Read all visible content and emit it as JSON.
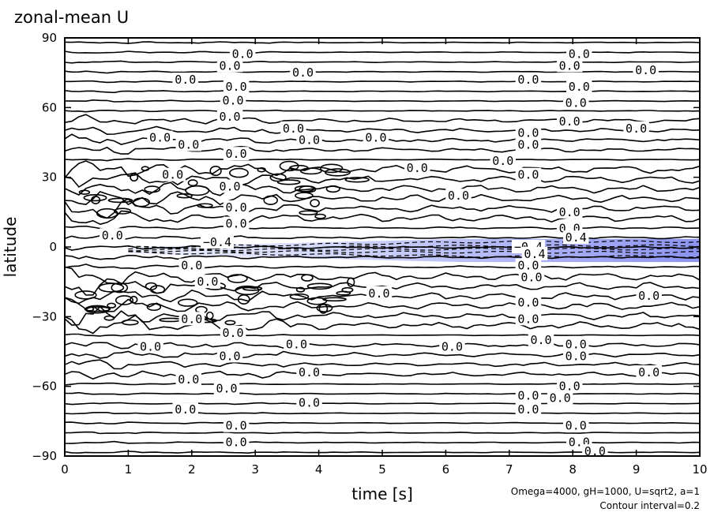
{
  "chart_data": {
    "type": "contour",
    "title": "zonal-mean U",
    "xlabel": "time [s]",
    "ylabel": "latitude",
    "xlim": [
      0,
      10
    ],
    "ylim": [
      -90,
      90
    ],
    "x_ticks": [
      "0",
      "1",
      "2",
      "3",
      "4",
      "5",
      "6",
      "7",
      "8",
      "9",
      "10"
    ],
    "y_ticks": [
      "90",
      "60",
      "30",
      "0",
      "−30",
      "−60",
      "−90"
    ],
    "y_tick_values": [
      90,
      60,
      30,
      0,
      -30,
      -60,
      -90
    ],
    "contour_interval": 0.2,
    "grid": false,
    "negative_fill_color": "#9999f0",
    "negative_region": {
      "latitude_center": -1.5,
      "max_halfwidth_deg": 5,
      "onset_time": 1.0,
      "min_value": -0.4
    },
    "contour_labels": [
      {
        "text": "0.0",
        "x": 2.8,
        "y": 83
      },
      {
        "text": "0.0",
        "x": 2.6,
        "y": 78
      },
      {
        "text": "0.0",
        "x": 8.1,
        "y": 83
      },
      {
        "text": "0.0",
        "x": 7.95,
        "y": 78
      },
      {
        "text": "0.0",
        "x": 1.9,
        "y": 72
      },
      {
        "text": "0.0",
        "x": 3.75,
        "y": 75
      },
      {
        "text": "0.0",
        "x": 7.3,
        "y": 72
      },
      {
        "text": "0.0",
        "x": 9.15,
        "y": 76
      },
      {
        "text": "0.0",
        "x": 2.7,
        "y": 69
      },
      {
        "text": "0.0",
        "x": 2.65,
        "y": 63
      },
      {
        "text": "0.0",
        "x": 2.6,
        "y": 56
      },
      {
        "text": "0.0",
        "x": 8.1,
        "y": 69
      },
      {
        "text": "0.0",
        "x": 8.05,
        "y": 62
      },
      {
        "text": "0.0",
        "x": 7.95,
        "y": 54
      },
      {
        "text": "0.0",
        "x": 3.6,
        "y": 51
      },
      {
        "text": "0.0",
        "x": 1.5,
        "y": 47
      },
      {
        "text": "0.0",
        "x": 1.95,
        "y": 44
      },
      {
        "text": "0.0",
        "x": 3.85,
        "y": 46
      },
      {
        "text": "0.0",
        "x": 4.9,
        "y": 47
      },
      {
        "text": "0.0",
        "x": 7.3,
        "y": 49
      },
      {
        "text": "0.0",
        "x": 7.3,
        "y": 44
      },
      {
        "text": "0.0",
        "x": 9.0,
        "y": 51
      },
      {
        "text": "0.0",
        "x": 1.7,
        "y": 31
      },
      {
        "text": "0.0",
        "x": 2.7,
        "y": 40
      },
      {
        "text": "0.0",
        "x": 5.55,
        "y": 34
      },
      {
        "text": "0.0",
        "x": 6.9,
        "y": 37
      },
      {
        "text": "0.0",
        "x": 7.3,
        "y": 31
      },
      {
        "text": "0.0",
        "x": 2.6,
        "y": 26
      },
      {
        "text": "0.0",
        "x": 6.2,
        "y": 22
      },
      {
        "text": "0.0",
        "x": 2.7,
        "y": 17
      },
      {
        "text": "0.0",
        "x": 2.7,
        "y": 10
      },
      {
        "text": "0.0",
        "x": 7.95,
        "y": 15
      },
      {
        "text": "0.0",
        "x": 7.95,
        "y": 8
      },
      {
        "text": "0.0",
        "x": 0.75,
        "y": 5
      },
      {
        "text": "−0.4",
        "x": 2.4,
        "y": 2
      },
      {
        "text": "−0.4",
        "x": 7.3,
        "y": 0
      },
      {
        "text": "0.4",
        "x": 8.05,
        "y": 4
      },
      {
        "text": "0.4",
        "x": 7.4,
        "y": -3
      },
      {
        "text": "0.0",
        "x": 2.0,
        "y": -8
      },
      {
        "text": "0.0",
        "x": 2.25,
        "y": -15
      },
      {
        "text": "0.0",
        "x": 7.3,
        "y": -8
      },
      {
        "text": "0.0",
        "x": 7.35,
        "y": -13
      },
      {
        "text": "0.0",
        "x": 4.95,
        "y": -20
      },
      {
        "text": "0.0",
        "x": 9.2,
        "y": -21
      },
      {
        "text": "0.0",
        "x": 2.0,
        "y": -31
      },
      {
        "text": "0.0",
        "x": 7.3,
        "y": -24
      },
      {
        "text": "0.0",
        "x": 7.3,
        "y": -31
      },
      {
        "text": "0.0",
        "x": 2.65,
        "y": -37
      },
      {
        "text": "0.0",
        "x": 1.35,
        "y": -43
      },
      {
        "text": "0.0",
        "x": 3.65,
        "y": -42
      },
      {
        "text": "0.0",
        "x": 6.1,
        "y": -43
      },
      {
        "text": "0.0",
        "x": 7.5,
        "y": -40
      },
      {
        "text": "0.0",
        "x": 8.05,
        "y": -42
      },
      {
        "text": "0.0",
        "x": 2.6,
        "y": -47
      },
      {
        "text": "0.0",
        "x": 8.05,
        "y": -47
      },
      {
        "text": "0.0",
        "x": 1.95,
        "y": -57
      },
      {
        "text": "0.0",
        "x": 3.85,
        "y": -54
      },
      {
        "text": "0.0",
        "x": 2.55,
        "y": -61
      },
      {
        "text": "0.0",
        "x": 7.95,
        "y": -60
      },
      {
        "text": "0.0",
        "x": 9.2,
        "y": -54
      },
      {
        "text": "0.0",
        "x": 3.85,
        "y": -67
      },
      {
        "text": "0.0",
        "x": 7.3,
        "y": -64
      },
      {
        "text": "0.0",
        "x": 7.8,
        "y": -65
      },
      {
        "text": "0.0",
        "x": 1.9,
        "y": -70
      },
      {
        "text": "0.0",
        "x": 7.3,
        "y": -70
      },
      {
        "text": "0.0",
        "x": 2.7,
        "y": -77
      },
      {
        "text": "0.0",
        "x": 2.7,
        "y": -84
      },
      {
        "text": "0.0",
        "x": 8.05,
        "y": -77
      },
      {
        "text": "0.0",
        "x": 8.1,
        "y": -84
      },
      {
        "text": "0.0",
        "x": 8.35,
        "y": -88
      }
    ]
  },
  "footnotes": {
    "parameters": "Omega=4000, gH=1000, U=sqrt2, a=1",
    "interval": "Contour interval=0.2"
  }
}
